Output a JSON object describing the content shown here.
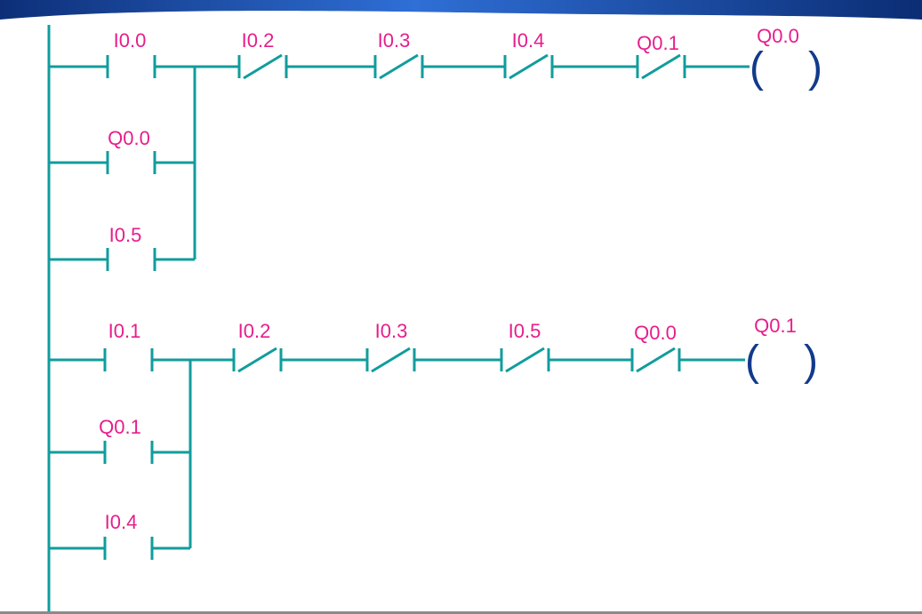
{
  "colors": {
    "wire": "#119c9c",
    "label": "#e61e8c",
    "coil": "#123a8c",
    "banner": "#1d4fb0"
  },
  "rung1": {
    "contacts": [
      {
        "label": "I0.0",
        "type": "NO"
      },
      {
        "label": "I0.2",
        "type": "NC"
      },
      {
        "label": "I0.3",
        "type": "NC"
      },
      {
        "label": "I0.4",
        "type": "NC"
      },
      {
        "label": "Q0.1",
        "type": "NC"
      }
    ],
    "branches": [
      {
        "label": "Q0.0",
        "type": "NO"
      },
      {
        "label": "I0.5",
        "type": "NO"
      }
    ],
    "coil": {
      "label": "Q0.0",
      "open": "(",
      "close": ")"
    }
  },
  "rung2": {
    "contacts": [
      {
        "label": "I0.1",
        "type": "NO"
      },
      {
        "label": "I0.2",
        "type": "NC"
      },
      {
        "label": "I0.3",
        "type": "NC"
      },
      {
        "label": "I0.5",
        "type": "NC"
      },
      {
        "label": "Q0.0",
        "type": "NC"
      }
    ],
    "branches": [
      {
        "label": "Q0.1",
        "type": "NO"
      },
      {
        "label": "I0.4",
        "type": "NO"
      }
    ],
    "coil": {
      "label": "Q0.1",
      "open": "(",
      "close": ")"
    }
  }
}
